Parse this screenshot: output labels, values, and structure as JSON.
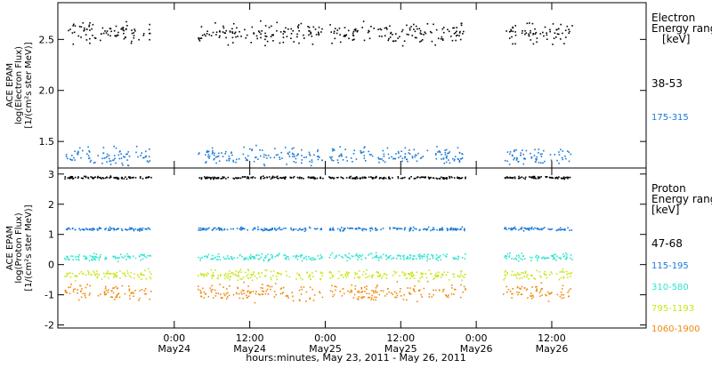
{
  "chart_data": [
    {
      "type": "scatter",
      "panel": "electron",
      "ylabel_lines": [
        "ACE EPAM",
        "log(Electron Flux)",
        "[1/(cm²s ster MeV)]"
      ],
      "ylim": [
        1.24,
        2.86
      ],
      "yticks": [
        1.5,
        2.0,
        2.5
      ],
      "ytick_labels": [
        "1.5",
        "2.0",
        "2.5"
      ],
      "legend_lines": [
        "Electron",
        "Energy ranges",
        "[keV]"
      ],
      "series": [
        {
          "name": "38-53",
          "color": "#000000",
          "mean": 2.57,
          "spread": 0.07
        },
        {
          "name": "175-315",
          "color": "#1a7ad4",
          "mean": 1.36,
          "spread": 0.06
        }
      ]
    },
    {
      "type": "scatter",
      "panel": "proton",
      "ylabel_lines": [
        "ACE EPAM",
        "log(Proton Flux)",
        "[1/(cm²s ster MeV)]"
      ],
      "ylim": [
        -2.1,
        3.2
      ],
      "yticks": [
        -2,
        -1,
        0,
        1,
        2,
        3
      ],
      "ytick_labels": [
        "-2",
        "-1",
        "0",
        "1",
        "2",
        "3"
      ],
      "legend_lines": [
        "Proton",
        "Energy ranges",
        "[keV]"
      ],
      "series": [
        {
          "name": "47-68",
          "color": "#000000",
          "mean": 2.9,
          "spread": 0.03
        },
        {
          "name": "115-195",
          "color": "#1a7ad4",
          "mean": 1.2,
          "spread": 0.04
        },
        {
          "name": "310-580",
          "color": "#2ee6cf",
          "mean": 0.27,
          "spread": 0.08
        },
        {
          "name": "795-1193",
          "color": "#c8e61a",
          "mean": -0.32,
          "spread": 0.12
        },
        {
          "name": "1060-1900",
          "color": "#f08a10",
          "mean": -0.9,
          "spread": 0.2
        }
      ]
    }
  ],
  "x_axis": {
    "xlim_hours": [
      -18.5,
      75
    ],
    "data_segments_hours": [
      [
        -17.5,
        -3.7
      ],
      [
        3.7,
        23.6
      ],
      [
        24.5,
        46.2
      ],
      [
        52.2,
        63.2
      ]
    ],
    "ticks": [
      {
        "hours": 0,
        "time": "0:00",
        "date": "May24"
      },
      {
        "hours": 12,
        "time": "12:00",
        "date": "May24"
      },
      {
        "hours": 24,
        "time": "0:00",
        "date": "May25"
      },
      {
        "hours": 36,
        "time": "12:00",
        "date": "May25"
      },
      {
        "hours": 48,
        "time": "0:00",
        "date": "May26"
      },
      {
        "hours": 60,
        "time": "12:00",
        "date": "May26"
      }
    ],
    "label": "hours:minutes, May 23, 2011 - May 26, 2011"
  }
}
